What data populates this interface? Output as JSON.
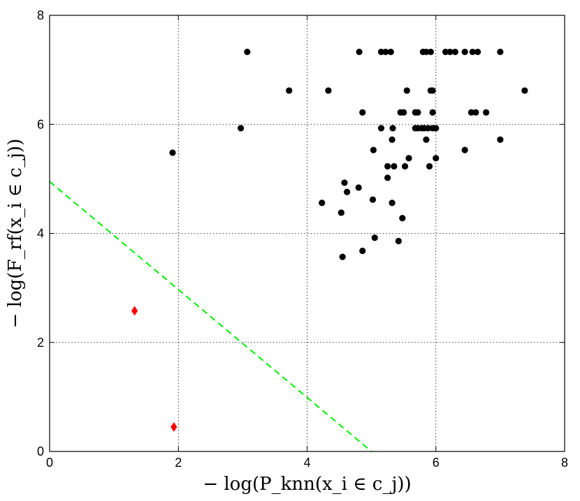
{
  "chart_data": {
    "type": "scatter",
    "title": "",
    "xlabel": "− log(P_knn(x_i ∈ c_j))",
    "ylabel": "− log(F_rf(x_i ∈ c_j))",
    "xlim": [
      0,
      8
    ],
    "ylim": [
      0,
      8
    ],
    "xticks": [
      "0",
      "2",
      "4",
      "6",
      "8"
    ],
    "yticks": [
      "0",
      "2",
      "4",
      "6",
      "8"
    ],
    "grid": true,
    "legend": "none",
    "series": [
      {
        "marker": "circle",
        "color": "#000000",
        "points": [
          [
            3.07,
            7.33
          ],
          [
            4.81,
            7.33
          ],
          [
            5.15,
            7.33
          ],
          [
            5.22,
            7.33
          ],
          [
            5.3,
            7.33
          ],
          [
            5.8,
            7.33
          ],
          [
            5.85,
            7.33
          ],
          [
            5.92,
            7.33
          ],
          [
            6.15,
            7.33
          ],
          [
            6.22,
            7.33
          ],
          [
            6.3,
            7.33
          ],
          [
            6.45,
            7.33
          ],
          [
            6.57,
            7.33
          ],
          [
            6.65,
            7.33
          ],
          [
            7.0,
            7.33
          ],
          [
            3.72,
            6.62
          ],
          [
            4.33,
            6.62
          ],
          [
            5.55,
            6.62
          ],
          [
            5.92,
            6.62
          ],
          [
            5.95,
            6.62
          ],
          [
            7.38,
            6.62
          ],
          [
            4.86,
            6.22
          ],
          [
            5.45,
            6.22
          ],
          [
            5.5,
            6.22
          ],
          [
            5.68,
            6.22
          ],
          [
            5.72,
            6.22
          ],
          [
            5.95,
            6.22
          ],
          [
            6.55,
            6.22
          ],
          [
            6.62,
            6.22
          ],
          [
            6.78,
            6.22
          ],
          [
            2.97,
            5.93
          ],
          [
            5.15,
            5.93
          ],
          [
            5.33,
            5.93
          ],
          [
            5.68,
            5.93
          ],
          [
            5.72,
            5.93
          ],
          [
            5.78,
            5.93
          ],
          [
            5.82,
            5.93
          ],
          [
            5.88,
            5.93
          ],
          [
            5.95,
            5.93
          ],
          [
            6.0,
            5.93
          ],
          [
            5.32,
            5.72
          ],
          [
            5.85,
            5.72
          ],
          [
            7.0,
            5.72
          ],
          [
            1.91,
            5.48
          ],
          [
            5.03,
            5.53
          ],
          [
            6.45,
            5.53
          ],
          [
            5.58,
            5.38
          ],
          [
            6.0,
            5.38
          ],
          [
            5.25,
            5.23
          ],
          [
            5.35,
            5.23
          ],
          [
            5.52,
            5.23
          ],
          [
            5.9,
            5.23
          ],
          [
            5.25,
            5.02
          ],
          [
            4.58,
            4.93
          ],
          [
            4.62,
            4.76
          ],
          [
            4.8,
            4.84
          ],
          [
            4.23,
            4.56
          ],
          [
            5.02,
            4.62
          ],
          [
            5.32,
            4.56
          ],
          [
            4.53,
            4.38
          ],
          [
            5.48,
            4.28
          ],
          [
            5.05,
            3.92
          ],
          [
            5.42,
            3.86
          ],
          [
            4.86,
            3.68
          ],
          [
            4.55,
            3.57
          ]
        ]
      },
      {
        "marker": "diamond",
        "color": "#ff0000",
        "points": [
          [
            1.32,
            2.58
          ],
          [
            1.93,
            0.45
          ]
        ]
      }
    ],
    "reference_line": {
      "style": "dashed",
      "color": "#00ee00",
      "points": [
        [
          0,
          4.95
        ],
        [
          5.0,
          0
        ]
      ]
    }
  }
}
